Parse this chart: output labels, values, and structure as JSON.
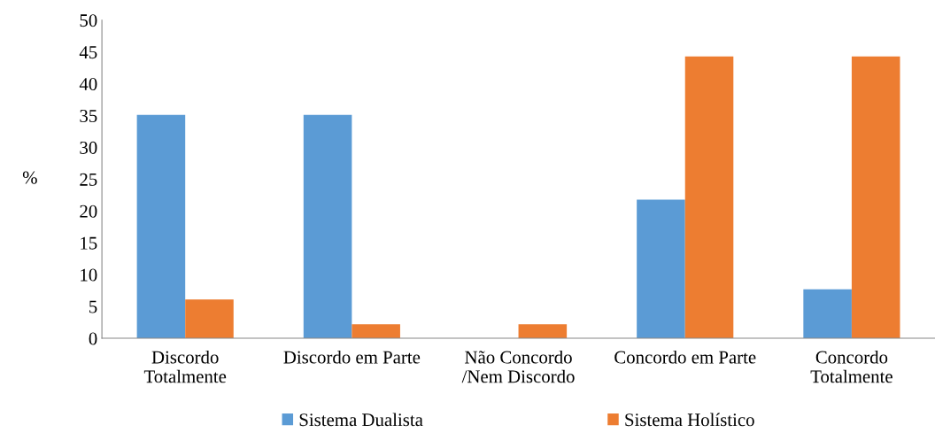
{
  "chart_data": {
    "type": "bar",
    "ylabel": "%",
    "categories": [
      "Discordo\nTotalmente",
      "Discordo em Parte",
      "Não Concordo\n/Nem Discordo",
      "Concordo em Parte",
      "Concordo\nTotalmente"
    ],
    "series": [
      {
        "name": "Sistema Dualista",
        "color": "#5b9bd5",
        "values": [
          35.1,
          35.1,
          0,
          21.8,
          7.7
        ]
      },
      {
        "name": "Sistema Holístico",
        "color": "#ed7d31",
        "values": [
          6.1,
          2.2,
          2.2,
          44.3,
          44.3
        ]
      }
    ],
    "ylim": [
      0,
      50
    ],
    "yticks": [
      0,
      5,
      10,
      15,
      20,
      25,
      30,
      35,
      40,
      45,
      50
    ],
    "grid": false,
    "legend": "bottom"
  }
}
